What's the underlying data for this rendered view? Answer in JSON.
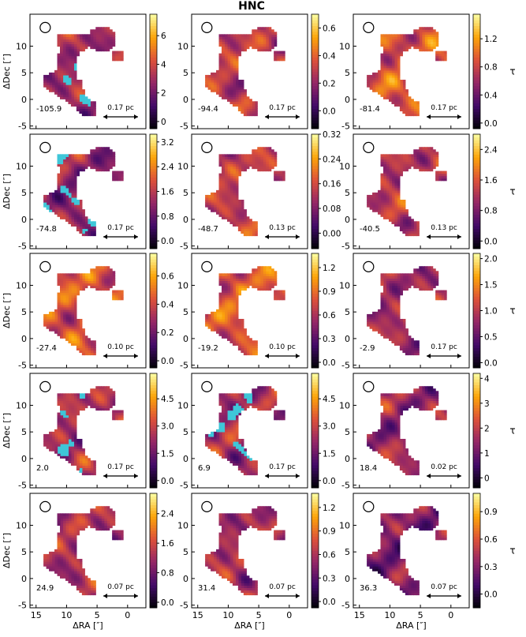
{
  "figure": {
    "title": "HNC",
    "xlabel": "ΔRA [″]",
    "ylabel": "ΔDec [″]",
    "colorbar_label": "τ",
    "colors": {
      "masked": "#3fc6d8",
      "beam": "#000000",
      "frame": "#000000"
    },
    "colormap": [
      "#000004",
      "#420a68",
      "#932667",
      "#dd513a",
      "#fca50a",
      "#fcffa4"
    ]
  },
  "chart_data": [
    {
      "type": "heatmap",
      "velocity": "-105.9",
      "scale_bar": "0.17 pc",
      "cbar_ticks": [
        "0",
        "2",
        "4",
        "6"
      ],
      "cbar_range": [
        -0.5,
        7.5
      ],
      "masked": true,
      "show_ylabel": true,
      "show_xlabel": false,
      "show_cbar_label": false,
      "base_level": 0.45
    },
    {
      "type": "heatmap",
      "velocity": "-94.4",
      "scale_bar": "0.17 pc",
      "cbar_ticks": [
        "0.0",
        "0.2",
        "0.4",
        "0.6"
      ],
      "cbar_range": [
        -0.13,
        0.7
      ],
      "masked": false,
      "show_ylabel": false,
      "show_xlabel": false,
      "show_cbar_label": false,
      "base_level": 0.5
    },
    {
      "type": "heatmap",
      "velocity": "-81.4",
      "scale_bar": "0.17 pc",
      "cbar_ticks": [
        "0.0",
        "0.4",
        "0.8",
        "1.2"
      ],
      "cbar_range": [
        -0.08,
        1.55
      ],
      "masked": false,
      "show_ylabel": false,
      "show_xlabel": false,
      "show_cbar_label": true,
      "base_level": 0.6
    },
    {
      "type": "heatmap",
      "velocity": "-74.8",
      "scale_bar": "0.17 pc",
      "cbar_ticks": [
        "0.0",
        "0.8",
        "1.6",
        "2.4",
        "3.2"
      ],
      "cbar_range": [
        -0.25,
        3.45
      ],
      "masked": true,
      "show_ylabel": true,
      "show_xlabel": false,
      "show_cbar_label": false,
      "base_level": 0.4
    },
    {
      "type": "heatmap",
      "velocity": "-48.7",
      "scale_bar": "0.13 pc",
      "cbar_ticks": [
        "0.00",
        "0.08",
        "0.16",
        "0.24",
        "0.32"
      ],
      "cbar_range": [
        -0.05,
        0.32
      ],
      "masked": false,
      "show_ylabel": false,
      "show_xlabel": false,
      "show_cbar_label": false,
      "base_level": 0.5
    },
    {
      "type": "heatmap",
      "velocity": "-40.5",
      "scale_bar": "0.13 pc",
      "cbar_ticks": [
        "0.0",
        "0.8",
        "1.6",
        "2.4"
      ],
      "cbar_range": [
        -0.2,
        2.8
      ],
      "masked": false,
      "show_ylabel": false,
      "show_xlabel": false,
      "show_cbar_label": true,
      "base_level": 0.5
    },
    {
      "type": "heatmap",
      "velocity": "-27.4",
      "scale_bar": "0.10 pc",
      "cbar_ticks": [
        "0.0",
        "0.2",
        "0.4",
        "0.6"
      ],
      "cbar_range": [
        -0.05,
        0.76
      ],
      "masked": false,
      "show_ylabel": true,
      "show_xlabel": false,
      "show_cbar_label": false,
      "base_level": 0.58
    },
    {
      "type": "heatmap",
      "velocity": "-19.2",
      "scale_bar": "0.10 pc",
      "cbar_ticks": [
        "0.0",
        "0.3",
        "0.6",
        "0.9",
        "1.2"
      ],
      "cbar_range": [
        -0.07,
        1.38
      ],
      "masked": false,
      "show_ylabel": false,
      "show_xlabel": false,
      "show_cbar_label": false,
      "base_level": 0.6
    },
    {
      "type": "heatmap",
      "velocity": "-2.9",
      "scale_bar": "0.17 pc",
      "cbar_ticks": [
        "0.0",
        "0.5",
        "1.0",
        "1.5",
        "2.0"
      ],
      "cbar_range": [
        -0.1,
        2.1
      ],
      "masked": false,
      "show_ylabel": false,
      "show_xlabel": false,
      "show_cbar_label": true,
      "base_level": 0.45
    },
    {
      "type": "heatmap",
      "velocity": "2.0",
      "scale_bar": "0.17 pc",
      "cbar_ticks": [
        "0.0",
        "1.5",
        "3.0",
        "4.5"
      ],
      "cbar_range": [
        -0.4,
        5.9
      ],
      "masked": true,
      "show_ylabel": true,
      "show_xlabel": false,
      "show_cbar_label": false,
      "base_level": 0.45
    },
    {
      "type": "heatmap",
      "velocity": "6.9",
      "scale_bar": "0.17 pc",
      "cbar_ticks": [
        "0.0",
        "1.5",
        "3.0",
        "4.5"
      ],
      "cbar_range": [
        -0.4,
        5.9
      ],
      "masked": true,
      "show_ylabel": false,
      "show_xlabel": false,
      "show_cbar_label": false,
      "base_level": 0.45
    },
    {
      "type": "heatmap",
      "velocity": "18.4",
      "scale_bar": "0.02 pc",
      "cbar_ticks": [
        "0",
        "1",
        "2",
        "3",
        "4"
      ],
      "cbar_range": [
        -0.4,
        4.2
      ],
      "masked": false,
      "show_ylabel": false,
      "show_xlabel": false,
      "show_cbar_label": true,
      "base_level": 0.42
    },
    {
      "type": "heatmap",
      "velocity": "24.9",
      "scale_bar": "0.07 pc",
      "cbar_ticks": [
        "0.0",
        "0.8",
        "1.6",
        "2.4"
      ],
      "cbar_range": [
        -0.15,
        2.95
      ],
      "masked": false,
      "show_ylabel": true,
      "show_xlabel": true,
      "show_cbar_label": false,
      "base_level": 0.45
    },
    {
      "type": "heatmap",
      "velocity": "31.4",
      "scale_bar": "0.07 pc",
      "cbar_ticks": [
        "0.0",
        "0.3",
        "0.6",
        "0.9",
        "1.2"
      ],
      "cbar_range": [
        -0.08,
        1.38
      ],
      "masked": false,
      "show_ylabel": false,
      "show_xlabel": true,
      "show_cbar_label": false,
      "base_level": 0.45
    },
    {
      "type": "heatmap",
      "velocity": "36.3",
      "scale_bar": "0.07 pc",
      "cbar_ticks": [
        "0.0",
        "0.3",
        "0.6",
        "0.9"
      ],
      "cbar_range": [
        -0.15,
        1.1
      ],
      "masked": false,
      "show_ylabel": false,
      "show_xlabel": true,
      "show_cbar_label": true,
      "base_level": 0.35
    }
  ],
  "axes": {
    "xlim": [
      16,
      -3
    ],
    "ylim": [
      -5.5,
      16
    ],
    "xticks": [
      "15",
      "10",
      "5",
      "0"
    ],
    "yticks": [
      "-5",
      "0",
      "5",
      "10"
    ]
  }
}
